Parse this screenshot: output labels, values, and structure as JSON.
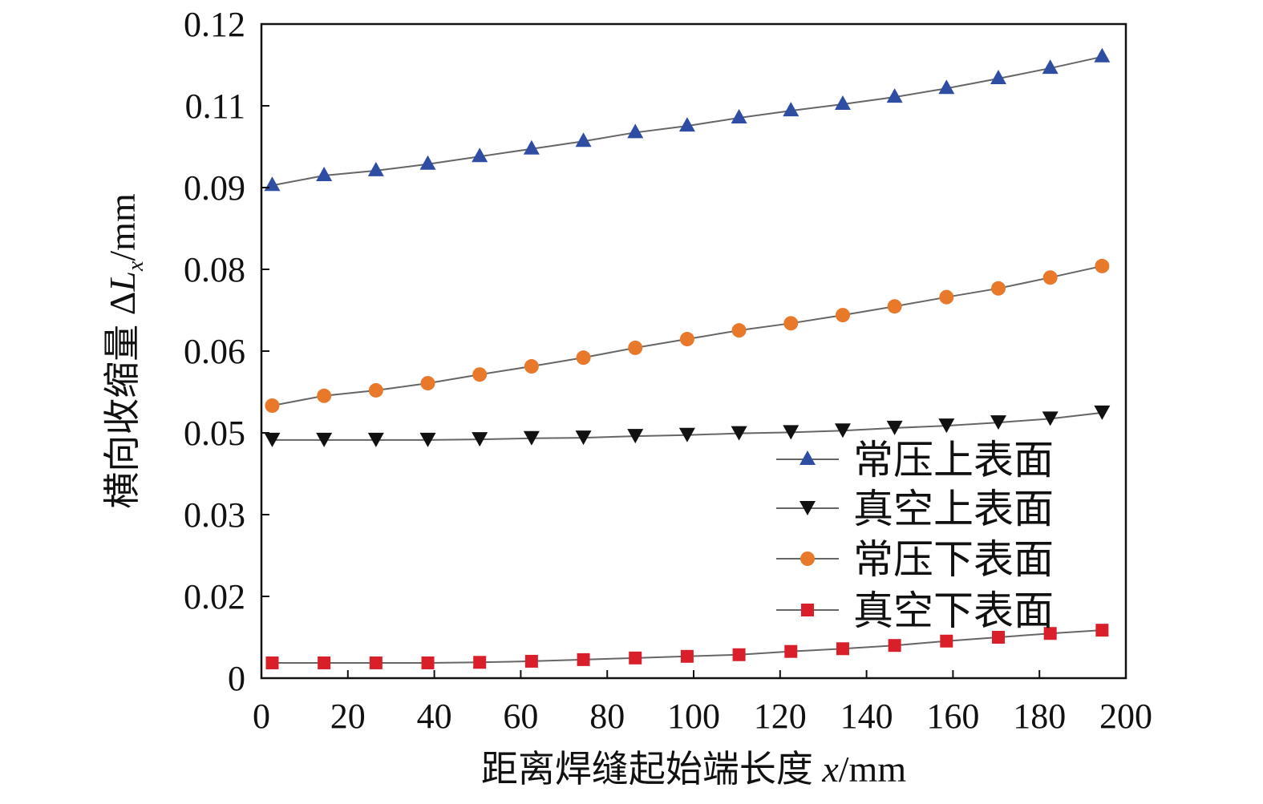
{
  "chart_data": {
    "type": "line",
    "title": "",
    "xlabel": "距离焊缝起始端长度 x/mm",
    "xlabel_parts": {
      "prefix": "距离焊缝起始端长度 ",
      "var": "x",
      "unit": "/mm"
    },
    "ylabel": "横向收缩量 ΔLx/mm",
    "ylabel_parts": {
      "prefix": "横向收缩量 Δ",
      "var": "L",
      "sub": "x",
      "unit": "/mm"
    },
    "xlim": [
      0,
      200
    ],
    "ylim": [
      0,
      0.12
    ],
    "xticks": [
      0,
      20,
      40,
      60,
      80,
      100,
      120,
      140,
      160,
      180,
      200
    ],
    "xtick_labels": [
      "0",
      "20",
      "40",
      "60",
      "80",
      "100",
      "120",
      "140",
      "160",
      "180",
      "200"
    ],
    "yticks": [
      0,
      0.015,
      0.03,
      0.045,
      0.06,
      0.075,
      0.09,
      0.105,
      0.12
    ],
    "ytick_labels": [
      "0",
      "0.02",
      "0.03",
      "0.05",
      "0.06",
      "0.08",
      "0.09",
      "0.11",
      "0.12"
    ],
    "grid": false,
    "legend_position": "bottom-right",
    "x": [
      2.5,
      14.5,
      26.5,
      38.5,
      50.5,
      62.5,
      74.5,
      86.5,
      98.5,
      110.5,
      122.5,
      134.5,
      146.5,
      158.5,
      170.5,
      182.5,
      194.5
    ],
    "series": [
      {
        "name": "常压上表面",
        "marker": "triangle-up",
        "color": "#2e4da3",
        "values": [
          0.0904,
          0.0922,
          0.0931,
          0.0943,
          0.0957,
          0.0971,
          0.0985,
          0.1001,
          0.1013,
          0.1028,
          0.1041,
          0.1053,
          0.1066,
          0.1082,
          0.11,
          0.1119,
          0.114
        ]
      },
      {
        "name": "真空上表面",
        "marker": "triangle-down",
        "color": "#111111",
        "values": [
          0.0437,
          0.0437,
          0.0437,
          0.0437,
          0.0438,
          0.044,
          0.0441,
          0.0444,
          0.0446,
          0.0449,
          0.0451,
          0.0454,
          0.0459,
          0.0463,
          0.0469,
          0.0476,
          0.0487
        ]
      },
      {
        "name": "常压下表面",
        "marker": "circle",
        "color": "#e8782a",
        "values": [
          0.05,
          0.0518,
          0.0528,
          0.0541,
          0.0557,
          0.0572,
          0.0588,
          0.0606,
          0.0622,
          0.0638,
          0.0651,
          0.0666,
          0.0682,
          0.0699,
          0.0715,
          0.0735,
          0.0756
        ]
      },
      {
        "name": "真空下表面",
        "marker": "square",
        "color": "#d9202a",
        "values": [
          0.0028,
          0.0028,
          0.0028,
          0.0028,
          0.0029,
          0.0031,
          0.0034,
          0.0037,
          0.004,
          0.0043,
          0.0049,
          0.0054,
          0.006,
          0.0068,
          0.0075,
          0.0082,
          0.0088
        ]
      }
    ]
  }
}
